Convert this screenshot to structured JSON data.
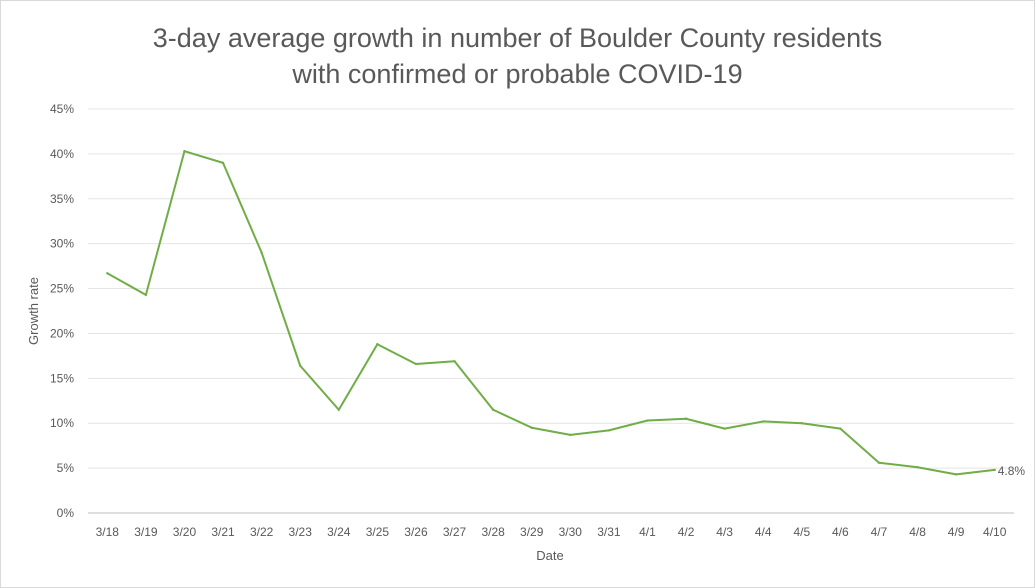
{
  "chart_data": {
    "type": "line",
    "title": [
      "3-day average growth in number of Boulder County residents",
      "with confirmed or probable COVID-19"
    ],
    "xlabel": "Date",
    "ylabel": "Growth rate",
    "ylim": [
      0,
      45
    ],
    "yticks": [
      "0%",
      "5%",
      "10%",
      "15%",
      "20%",
      "25%",
      "30%",
      "35%",
      "40%",
      "45%"
    ],
    "grid": true,
    "legend": "none",
    "color": "#70ad47",
    "categories": [
      "3/18",
      "3/19",
      "3/20",
      "3/21",
      "3/22",
      "3/23",
      "3/24",
      "3/25",
      "3/26",
      "3/27",
      "3/28",
      "3/29",
      "3/30",
      "3/31",
      "4/1",
      "4/2",
      "4/3",
      "4/4",
      "4/5",
      "4/6",
      "4/7",
      "4/8",
      "4/9",
      "4/10"
    ],
    "series": [
      {
        "values": [
          26.7,
          24.3,
          40.3,
          39.0,
          29.0,
          16.4,
          11.5,
          18.8,
          16.6,
          16.9,
          11.5,
          9.5,
          8.7,
          9.2,
          10.3,
          10.5,
          9.4,
          10.2,
          10.0,
          9.4,
          5.6,
          5.1,
          4.3,
          4.8
        ],
        "end_label": "4.8%"
      }
    ]
  }
}
